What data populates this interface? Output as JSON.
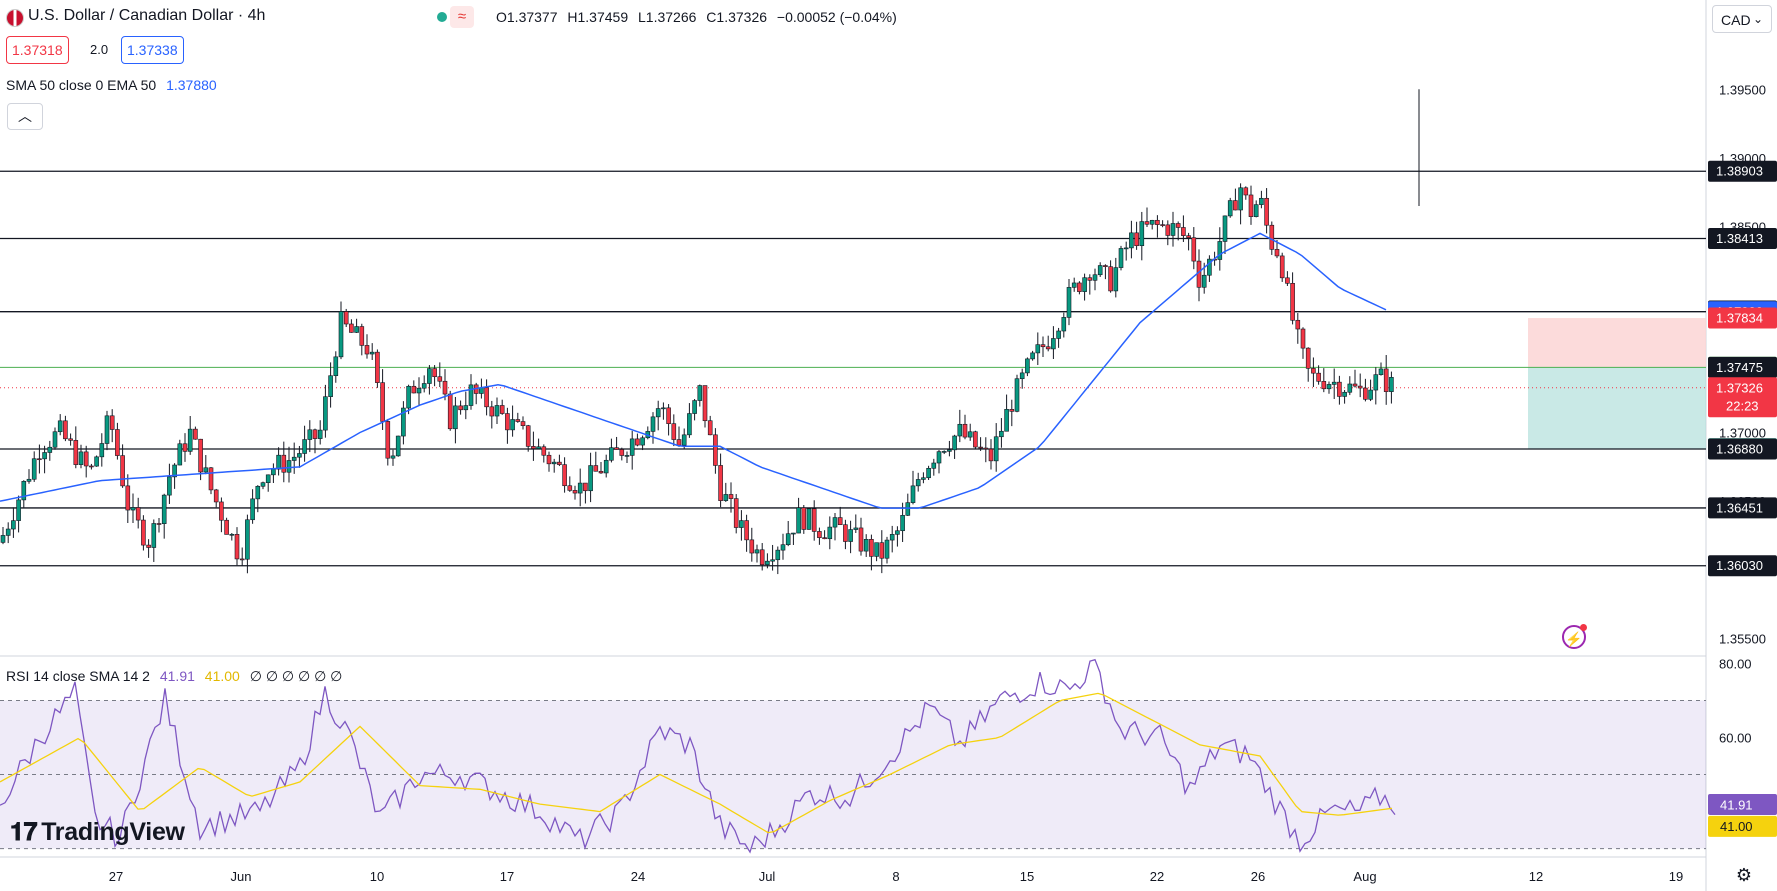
{
  "header": {
    "title": "U.S. Dollar / Canadian Dollar · 4h",
    "ohlc": {
      "open": "O1.37377",
      "high": "H1.37459",
      "low": "L1.37266",
      "close": "C1.37326",
      "change": "−0.00052 (−0.04%)"
    },
    "sell_price": "1.37318",
    "spread": "2.0",
    "buy_price": "1.37338",
    "currency": "CAD"
  },
  "indicator_sma": {
    "label": "SMA 50 close 0 EMA 50",
    "value": "1.37880"
  },
  "indicator_rsi": {
    "label": "RSI 14 close SMA 14 2",
    "rsi": "41.91",
    "sma": "41.00",
    "nulls": "∅ ∅ ∅ ∅ ∅ ∅"
  },
  "logo": "TradingView",
  "colors": {
    "up": "#089981",
    "down": "#f23645",
    "sma": "#2962ff",
    "rsi": "#7e57c2",
    "rsi_sma": "#f5d20e",
    "tp": "#b2dfdb",
    "sl": "#fbd5d5"
  },
  "chart_data": {
    "type": "candlestick",
    "price_axis": {
      "ticks": [
        1.395,
        1.39,
        1.385,
        1.375,
        1.37,
        1.365,
        1.355
      ],
      "tick_labels": [
        "1.39500",
        "1.39000",
        "1.38500",
        "1.37500",
        "1.37000",
        "1.36500",
        "1.35500"
      ]
    },
    "x_axis": {
      "labels": [
        "27",
        "Jun",
        "10",
        "17",
        "24",
        "Jul",
        "8",
        "15",
        "22",
        "26",
        "Aug",
        "12",
        "19"
      ]
    },
    "horizontal_levels": [
      1.38903,
      1.38413,
      1.3788,
      1.3688,
      1.36451,
      1.3603
    ],
    "price_labels": [
      {
        "value": 1.38903,
        "text": "1.38903",
        "kind": "level"
      },
      {
        "value": 1.38413,
        "text": "1.38413",
        "kind": "level"
      },
      {
        "value": 1.37885,
        "text": "1.37885",
        "kind": "level"
      },
      {
        "value": 1.3788,
        "text": "1.37880",
        "kind": "sma"
      },
      {
        "value": 1.37834,
        "text": "1.37834",
        "kind": "sl"
      },
      {
        "value": 1.37479,
        "text": "1.37479",
        "kind": "tp"
      },
      {
        "value": 1.37475,
        "text": "1.37475",
        "kind": "level"
      },
      {
        "value": 1.37326,
        "text": "1.37326",
        "kind": "last",
        "countdown": "22:23"
      },
      {
        "value": 1.36882,
        "text": "1.36882",
        "kind": "tp"
      },
      {
        "value": 1.3688,
        "text": "1.36880",
        "kind": "level"
      },
      {
        "value": 1.36451,
        "text": "1.36451",
        "kind": "level"
      },
      {
        "value": 1.3603,
        "text": "1.36030",
        "kind": "level"
      }
    ],
    "position": {
      "entry": 1.37475,
      "stop": 1.37834,
      "target": 1.36882
    },
    "close_series_keypoints": [
      [
        0,
        1.362
      ],
      [
        40,
        1.369
      ],
      [
        60,
        1.37
      ],
      [
        90,
        1.367
      ],
      [
        110,
        1.371
      ],
      [
        130,
        1.364
      ],
      [
        150,
        1.362
      ],
      [
        170,
        1.367
      ],
      [
        190,
        1.37
      ],
      [
        210,
        1.366
      ],
      [
        240,
        1.361
      ],
      [
        260,
        1.367
      ],
      [
        290,
        1.368
      ],
      [
        320,
        1.37
      ],
      [
        340,
        1.378
      ],
      [
        370,
        1.376
      ],
      [
        390,
        1.368
      ],
      [
        410,
        1.373
      ],
      [
        430,
        1.375
      ],
      [
        450,
        1.371
      ],
      [
        470,
        1.373
      ],
      [
        490,
        1.372
      ],
      [
        520,
        1.37
      ],
      [
        550,
        1.368
      ],
      [
        580,
        1.366
      ],
      [
        610,
        1.368
      ],
      [
        640,
        1.37
      ],
      [
        660,
        1.372
      ],
      [
        680,
        1.369
      ],
      [
        700,
        1.373
      ],
      [
        720,
        1.366
      ],
      [
        740,
        1.363
      ],
      [
        760,
        1.361
      ],
      [
        780,
        1.362
      ],
      [
        800,
        1.364
      ],
      [
        820,
        1.363
      ],
      [
        840,
        1.363
      ],
      [
        860,
        1.362
      ],
      [
        880,
        1.361
      ],
      [
        900,
        1.363
      ],
      [
        920,
        1.367
      ],
      [
        940,
        1.369
      ],
      [
        960,
        1.37
      ],
      [
        990,
        1.368
      ],
      [
        1010,
        1.372
      ],
      [
        1030,
        1.375
      ],
      [
        1050,
        1.377
      ],
      [
        1070,
        1.38
      ],
      [
        1090,
        1.382
      ],
      [
        1110,
        1.381
      ],
      [
        1130,
        1.384
      ],
      [
        1150,
        1.385
      ],
      [
        1170,
        1.385
      ],
      [
        1190,
        1.384
      ],
      [
        1200,
        1.381
      ],
      [
        1220,
        1.384
      ],
      [
        1240,
        1.388
      ],
      [
        1250,
        1.386
      ],
      [
        1260,
        1.387
      ],
      [
        1270,
        1.384
      ],
      [
        1280,
        1.383
      ],
      [
        1290,
        1.379
      ],
      [
        1300,
        1.376
      ],
      [
        1310,
        1.374
      ],
      [
        1320,
        1.374
      ],
      [
        1340,
        1.3735
      ],
      [
        1360,
        1.373
      ],
      [
        1380,
        1.374
      ],
      [
        1395,
        1.37326
      ]
    ],
    "sma_series_keypoints": [
      [
        0,
        1.365
      ],
      [
        100,
        1.3665
      ],
      [
        200,
        1.367
      ],
      [
        300,
        1.3675
      ],
      [
        360,
        1.37
      ],
      [
        420,
        1.372
      ],
      [
        460,
        1.373
      ],
      [
        500,
        1.3735
      ],
      [
        560,
        1.372
      ],
      [
        620,
        1.3705
      ],
      [
        680,
        1.369
      ],
      [
        720,
        1.369
      ],
      [
        760,
        1.3675
      ],
      [
        820,
        1.366
      ],
      [
        880,
        1.3645
      ],
      [
        920,
        1.3645
      ],
      [
        980,
        1.366
      ],
      [
        1040,
        1.369
      ],
      [
        1090,
        1.3735
      ],
      [
        1140,
        1.378
      ],
      [
        1180,
        1.3805
      ],
      [
        1220,
        1.383
      ],
      [
        1260,
        1.3845
      ],
      [
        1300,
        1.383
      ],
      [
        1340,
        1.3805
      ],
      [
        1390,
        1.3788
      ]
    ],
    "rsi": {
      "range": [
        30,
        80
      ],
      "upper_band": 70,
      "lower_band": 30,
      "last": 41.91,
      "sma_last": 41.0,
      "axis_labels": [
        "80.00",
        "60.00",
        "41.20"
      ],
      "keypoints": [
        [
          0,
          42
        ],
        [
          40,
          60
        ],
        [
          75,
          72
        ],
        [
          95,
          38
        ],
        [
          120,
          33
        ],
        [
          165,
          70
        ],
        [
          200,
          36
        ],
        [
          230,
          38
        ],
        [
          260,
          40
        ],
        [
          300,
          52
        ],
        [
          325,
          72
        ],
        [
          350,
          60
        ],
        [
          380,
          38
        ],
        [
          420,
          50
        ],
        [
          460,
          50
        ],
        [
          500,
          45
        ],
        [
          540,
          40
        ],
        [
          580,
          32
        ],
        [
          620,
          40
        ],
        [
          660,
          62
        ],
        [
          690,
          58
        ],
        [
          720,
          36
        ],
        [
          750,
          30
        ],
        [
          775,
          35
        ],
        [
          810,
          45
        ],
        [
          850,
          44
        ],
        [
          890,
          55
        ],
        [
          930,
          68
        ],
        [
          960,
          58
        ],
        [
          1000,
          70
        ],
        [
          1040,
          75
        ],
        [
          1070,
          73
        ],
        [
          1095,
          80
        ],
        [
          1120,
          62
        ],
        [
          1160,
          60
        ],
        [
          1190,
          46
        ],
        [
          1220,
          58
        ],
        [
          1250,
          55
        ],
        [
          1270,
          45
        ],
        [
          1300,
          32
        ],
        [
          1330,
          40
        ],
        [
          1360,
          40
        ],
        [
          1380,
          44
        ],
        [
          1395,
          41.91
        ]
      ],
      "sma_keypoints": [
        [
          0,
          48
        ],
        [
          80,
          60
        ],
        [
          140,
          40
        ],
        [
          200,
          52
        ],
        [
          250,
          44
        ],
        [
          300,
          48
        ],
        [
          360,
          63
        ],
        [
          420,
          47
        ],
        [
          480,
          46
        ],
        [
          540,
          42
        ],
        [
          600,
          40
        ],
        [
          660,
          50
        ],
        [
          720,
          42
        ],
        [
          770,
          34
        ],
        [
          830,
          43
        ],
        [
          890,
          50
        ],
        [
          950,
          58
        ],
        [
          1000,
          60
        ],
        [
          1060,
          70
        ],
        [
          1100,
          72
        ],
        [
          1150,
          65
        ],
        [
          1200,
          58
        ],
        [
          1260,
          55
        ],
        [
          1300,
          40
        ],
        [
          1340,
          39
        ],
        [
          1395,
          41.0
        ]
      ]
    }
  }
}
